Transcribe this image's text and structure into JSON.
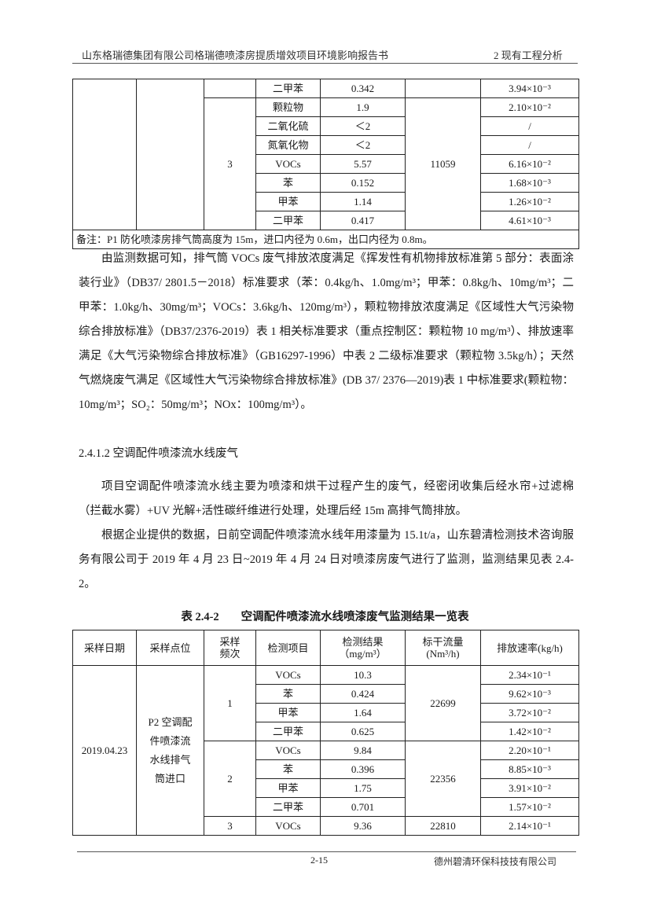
{
  "header": {
    "title": "山东格瑞德集团有限公司格瑞德喷漆房提质增效项目环境影响报告书",
    "section": "2 现有工程分析"
  },
  "table1": {
    "rows": [
      {
        "item": "二甲苯",
        "conc": "0.342",
        "rate": "3.94×10⁻³"
      },
      {
        "item": "颗粒物",
        "conc": "1.9",
        "rate": "2.10×10⁻²"
      },
      {
        "item": "二氧化硫",
        "conc": "＜2",
        "rate": "/"
      },
      {
        "item": "氮氧化物",
        "conc": "＜2",
        "rate": "/"
      },
      {
        "item": "VOCs",
        "conc": "5.57",
        "rate": "6.16×10⁻²"
      },
      {
        "item": "苯",
        "conc": "0.152",
        "rate": "1.68×10⁻³"
      },
      {
        "item": "甲苯",
        "conc": "1.14",
        "rate": "1.26×10⁻²"
      },
      {
        "item": "二甲苯",
        "conc": "0.417",
        "rate": "4.61×10⁻³"
      }
    ],
    "freq": "3",
    "flow": "11059",
    "note": "备注：P1 防化喷漆房排气筒高度为 15m，进口内径为 0.6m，出口内径为 0.8m。"
  },
  "paragraphs": {
    "p1": "由监测数据可知，排气筒 VOCs 废气排放浓度满足《挥发性有机物排放标准第 5 部分：表面涂装行业》（DB37/ 2801.5－2018）标准要求（苯：0.4kg/h、1.0mg/m³；甲苯：0.8kg/h、10mg/m³；二甲苯：1.0kg/h、30mg/m³；VOCs：3.6kg/h、120mg/m³），颗粒物排放浓度满足《区域性大气污染物综合排放标准》（DB37/2376-2019）表 1 相关标准要求（重点控制区：颗粒物 10 mg/m³）、排放速率满足《大气污染物综合排放标准》（GB16297-1996）中表 2 二级标准要求（颗粒物 3.5kg/h）；天然气燃烧废气满足《区域性大气污染物综合排放标准》(DB 37/ 2376—2019)表 1 中标准要求(颗粒物：10mg/m³；SO₂：50mg/m³；NOx：100mg/m³）。",
    "heading": "2.4.1.2 空调配件喷漆流水线废气",
    "p2": "项目空调配件喷漆流水线主要为喷漆和烘干过程产生的废气，经密闭收集后经水帘+过滤棉（拦截水雾）+UV 光解+活性碳纤维进行处理，处理后经 15m 高排气筒排放。",
    "p3": "根据企业提供的数据，日前空调配件喷漆流水线年用漆量为 15.1t/a，山东碧清检测技术咨询服务有限公司于 2019 年 4 月 23 日~2019 年 4 月 24 日对喷漆房废气进行了监测，监测结果见表 2.4-2。"
  },
  "table2": {
    "caption_no": "表 2.4-2",
    "caption": "空调配件喷漆流水线喷漆废气监测结果一览表",
    "headers": [
      "采样日期",
      "采样点位",
      "采样频次",
      "检测项目",
      "检测结果（mg/m³）",
      "标干流量(Nm³/h)",
      "排放速率(kg/h)"
    ],
    "date": "2019.04.23",
    "location": "P2 空调配件喷漆流水线排气筒进口",
    "groups": [
      {
        "freq": "1",
        "flow": "22699",
        "rows": [
          {
            "item": "VOCs",
            "conc": "10.3",
            "rate": "2.34×10⁻¹"
          },
          {
            "item": "苯",
            "conc": "0.424",
            "rate": "9.62×10⁻³"
          },
          {
            "item": "甲苯",
            "conc": "1.64",
            "rate": "3.72×10⁻²"
          },
          {
            "item": "二甲苯",
            "conc": "0.625",
            "rate": "1.42×10⁻²"
          }
        ]
      },
      {
        "freq": "2",
        "flow": "22356",
        "rows": [
          {
            "item": "VOCs",
            "conc": "9.84",
            "rate": "2.20×10⁻¹"
          },
          {
            "item": "苯",
            "conc": "0.396",
            "rate": "8.85×10⁻³"
          },
          {
            "item": "甲苯",
            "conc": "1.75",
            "rate": "3.91×10⁻²"
          },
          {
            "item": "二甲苯",
            "conc": "0.701",
            "rate": "1.57×10⁻²"
          }
        ]
      },
      {
        "freq": "3",
        "flow": "22810",
        "rows": [
          {
            "item": "VOCs",
            "conc": "9.36",
            "rate": "2.14×10⁻¹"
          }
        ]
      }
    ]
  },
  "footer": {
    "page": "2-15",
    "company": "德州碧清环保科技技有限公司"
  }
}
